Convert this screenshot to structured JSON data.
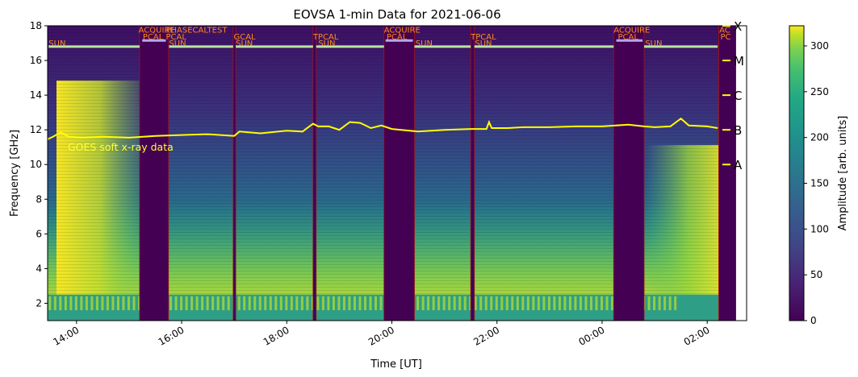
{
  "chart_data": {
    "type": "heatmap",
    "title": "EOVSA 1-min Data for 2021-06-06",
    "xlabel": "Time [UT]",
    "ylabel": "Frequency [GHz]",
    "ylim": [
      1,
      18
    ],
    "x_ticks": [
      "14:00",
      "16:00",
      "18:00",
      "20:00",
      "22:00",
      "00:00",
      "02:00"
    ],
    "y_ticks": [
      2,
      4,
      6,
      8,
      10,
      12,
      14,
      16,
      18
    ],
    "colorbar": {
      "label": "Amplitude [arb. units]",
      "ticks": [
        0,
        50,
        100,
        150,
        200,
        250,
        300
      ],
      "range": [
        0,
        322
      ],
      "colormap": "viridis"
    },
    "goes": {
      "label": "GOES soft x-ray data",
      "color": "#ffff00",
      "class_labels": [
        "X",
        "M",
        "C",
        "B",
        "A"
      ],
      "class_levels_ghz": [
        18,
        16,
        14,
        12,
        10
      ],
      "curve_ghz": [
        [
          13.45,
          11.45
        ],
        [
          13.55,
          11.6
        ],
        [
          13.7,
          11.85
        ],
        [
          13.85,
          11.6
        ],
        [
          14.1,
          11.55
        ],
        [
          14.5,
          11.6
        ],
        [
          15.0,
          11.55
        ],
        [
          15.5,
          11.65
        ],
        [
          16.0,
          11.7
        ],
        [
          16.5,
          11.75
        ],
        [
          17.0,
          11.65
        ],
        [
          17.1,
          11.9
        ],
        [
          17.5,
          11.8
        ],
        [
          18.0,
          11.95
        ],
        [
          18.3,
          11.9
        ],
        [
          18.5,
          12.35
        ],
        [
          18.6,
          12.2
        ],
        [
          18.8,
          12.2
        ],
        [
          19.0,
          12.0
        ],
        [
          19.2,
          12.45
        ],
        [
          19.4,
          12.4
        ],
        [
          19.6,
          12.1
        ],
        [
          19.8,
          12.25
        ],
        [
          20.0,
          12.05
        ],
        [
          20.5,
          11.9
        ],
        [
          21.0,
          12.0
        ],
        [
          21.5,
          12.05
        ],
        [
          21.8,
          12.05
        ],
        [
          21.85,
          12.45
        ],
        [
          21.9,
          12.1
        ],
        [
          22.2,
          12.1
        ],
        [
          22.5,
          12.15
        ],
        [
          23.0,
          12.15
        ],
        [
          23.5,
          12.2
        ],
        [
          24.0,
          12.2
        ],
        [
          24.5,
          12.3
        ],
        [
          24.8,
          12.2
        ],
        [
          25.0,
          12.15
        ],
        [
          25.3,
          12.2
        ],
        [
          25.5,
          12.65
        ],
        [
          25.65,
          12.25
        ],
        [
          26.0,
          12.2
        ],
        [
          26.2,
          12.1
        ]
      ]
    },
    "scan_labels": [
      {
        "text": "SUN",
        "t": 13.47,
        "row": 2
      },
      {
        "text": "ACQUIRE",
        "t": 15.18,
        "row": 0
      },
      {
        "text": "PCAL",
        "t": 15.26,
        "row": 1
      },
      {
        "text": "PHASECALTEST",
        "t": 15.7,
        "row": 0
      },
      {
        "text": "PCAL",
        "t": 15.7,
        "row": 1
      },
      {
        "text": "SUN",
        "t": 15.76,
        "row": 2
      },
      {
        "text": "GCAL",
        "t": 16.99,
        "row": 1
      },
      {
        "text": "SUN",
        "t": 17.03,
        "row": 2
      },
      {
        "text": "TPCAL",
        "t": 18.5,
        "row": 1
      },
      {
        "text": "SUN",
        "t": 18.6,
        "row": 2
      },
      {
        "text": "ACQUIRE",
        "t": 19.85,
        "row": 0
      },
      {
        "text": "PCAL",
        "t": 19.9,
        "row": 1
      },
      {
        "text": "SUN",
        "t": 20.45,
        "row": 2
      },
      {
        "text": "TPCAL",
        "t": 21.5,
        "row": 1
      },
      {
        "text": "SUN",
        "t": 21.58,
        "row": 2
      },
      {
        "text": "ACQUIRE",
        "t": 24.22,
        "row": 0
      },
      {
        "text": "PCAL",
        "t": 24.3,
        "row": 1
      },
      {
        "text": "SUN",
        "t": 24.82,
        "row": 2
      },
      {
        "text": "AC",
        "t": 26.23,
        "row": 0
      },
      {
        "text": "PC",
        "t": 26.25,
        "row": 1
      }
    ],
    "dark_gaps_ut": [
      [
        15.2,
        15.75
      ],
      [
        16.98,
        17.03
      ],
      [
        18.5,
        18.56
      ],
      [
        19.85,
        20.43
      ],
      [
        21.5,
        21.57
      ],
      [
        24.22,
        24.8
      ],
      [
        26.22,
        26.55
      ]
    ],
    "sun_bar_color": "#b8e6a0",
    "cal_bar_color": "#b4a6e8",
    "scan_label_color": "#ff8c1a"
  }
}
